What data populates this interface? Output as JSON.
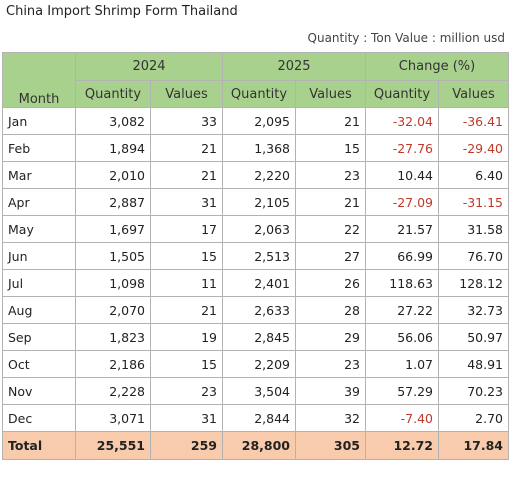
{
  "title": "China Import Shrimp Form Thailand",
  "unit_note": "Quantity : Ton Value : million usd",
  "header": {
    "month_label": "Month",
    "groups": [
      "2024",
      "2025",
      "Change (%)"
    ],
    "sub": [
      "Quantity",
      "Values",
      "Quantity",
      "Values",
      "Quantity",
      "Values"
    ]
  },
  "colors": {
    "header_bg": "#a9d18e",
    "total_bg": "#f8cbad",
    "negative_text": "#c0392b"
  },
  "rows": [
    {
      "month": "Jan",
      "q2024": "3,082",
      "v2024": "33",
      "q2025": "2,095",
      "v2025": "21",
      "cq": "-32.04",
      "cv": "-36.41"
    },
    {
      "month": "Feb",
      "q2024": "1,894",
      "v2024": "21",
      "q2025": "1,368",
      "v2025": "15",
      "cq": "-27.76",
      "cv": "-29.40"
    },
    {
      "month": "Mar",
      "q2024": "2,010",
      "v2024": "21",
      "q2025": "2,220",
      "v2025": "23",
      "cq": "10.44",
      "cv": "6.40"
    },
    {
      "month": "Apr",
      "q2024": "2,887",
      "v2024": "31",
      "q2025": "2,105",
      "v2025": "21",
      "cq": "-27.09",
      "cv": "-31.15"
    },
    {
      "month": "May",
      "q2024": "1,697",
      "v2024": "17",
      "q2025": "2,063",
      "v2025": "22",
      "cq": "21.57",
      "cv": "31.58"
    },
    {
      "month": "Jun",
      "q2024": "1,505",
      "v2024": "15",
      "q2025": "2,513",
      "v2025": "27",
      "cq": "66.99",
      "cv": "76.70"
    },
    {
      "month": "Jul",
      "q2024": "1,098",
      "v2024": "11",
      "q2025": "2,401",
      "v2025": "26",
      "cq": "118.63",
      "cv": "128.12"
    },
    {
      "month": "Aug",
      "q2024": "2,070",
      "v2024": "21",
      "q2025": "2,633",
      "v2025": "28",
      "cq": "27.22",
      "cv": "32.73"
    },
    {
      "month": "Sep",
      "q2024": "1,823",
      "v2024": "19",
      "q2025": "2,845",
      "v2025": "29",
      "cq": "56.06",
      "cv": "50.97"
    },
    {
      "month": "Oct",
      "q2024": "2,186",
      "v2024": "15",
      "q2025": "2,209",
      "v2025": "23",
      "cq": "1.07",
      "cv": "48.91"
    },
    {
      "month": "Nov",
      "q2024": "2,228",
      "v2024": "23",
      "q2025": "3,504",
      "v2025": "39",
      "cq": "57.29",
      "cv": "70.23"
    },
    {
      "month": "Dec",
      "q2024": "3,071",
      "v2024": "31",
      "q2025": "2,844",
      "v2025": "32",
      "cq": "-7.40",
      "cv": "2.70"
    }
  ],
  "total": {
    "label": "Total",
    "q2024": "25,551",
    "v2024": "259",
    "q2025": "28,800",
    "v2025": "305",
    "cq": "12.72",
    "cv": "17.84"
  }
}
